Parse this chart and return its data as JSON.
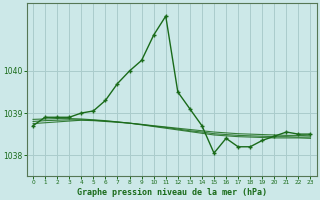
{
  "title": "Graphe pression niveau de la mer (hPa)",
  "bg_color": "#cce8e8",
  "grid_color": "#aacccc",
  "line_color": "#1a6b1a",
  "xlim": [
    -0.5,
    23.5
  ],
  "ylim": [
    1037.5,
    1041.6
  ],
  "yticks": [
    1038,
    1039,
    1040
  ],
  "xticks": [
    0,
    1,
    2,
    3,
    4,
    5,
    6,
    7,
    8,
    9,
    10,
    11,
    12,
    13,
    14,
    15,
    16,
    17,
    18,
    19,
    20,
    21,
    22,
    23
  ],
  "hours": [
    0,
    1,
    2,
    3,
    4,
    5,
    6,
    7,
    8,
    9,
    10,
    11,
    12,
    13,
    14,
    15,
    16,
    17,
    18,
    19,
    20,
    21,
    22,
    23
  ],
  "main_pressure": [
    1038.7,
    1038.9,
    1038.9,
    1038.9,
    1039.0,
    1039.05,
    1039.3,
    1039.7,
    1040.0,
    1040.25,
    1040.85,
    1041.3,
    1039.5,
    1039.1,
    1038.7,
    1038.05,
    1038.4,
    1038.2,
    1038.2,
    1038.35,
    1038.45,
    1038.55,
    1038.5,
    1038.5
  ],
  "smooth1": [
    1038.75,
    1038.77,
    1038.79,
    1038.81,
    1038.83,
    1038.82,
    1038.8,
    1038.78,
    1038.76,
    1038.73,
    1038.7,
    1038.67,
    1038.64,
    1038.61,
    1038.58,
    1038.55,
    1038.53,
    1038.51,
    1038.5,
    1038.49,
    1038.48,
    1038.47,
    1038.47,
    1038.46
  ],
  "smooth2": [
    1038.8,
    1038.82,
    1038.83,
    1038.84,
    1038.84,
    1038.83,
    1038.81,
    1038.79,
    1038.76,
    1038.73,
    1038.69,
    1038.66,
    1038.62,
    1038.58,
    1038.55,
    1038.51,
    1038.49,
    1038.47,
    1038.46,
    1038.45,
    1038.44,
    1038.44,
    1038.43,
    1038.43
  ],
  "smooth3": [
    1038.85,
    1038.86,
    1038.87,
    1038.87,
    1038.86,
    1038.84,
    1038.82,
    1038.79,
    1038.76,
    1038.72,
    1038.68,
    1038.64,
    1038.6,
    1038.56,
    1038.52,
    1038.48,
    1038.46,
    1038.44,
    1038.43,
    1038.42,
    1038.41,
    1038.41,
    1038.41,
    1038.4
  ]
}
